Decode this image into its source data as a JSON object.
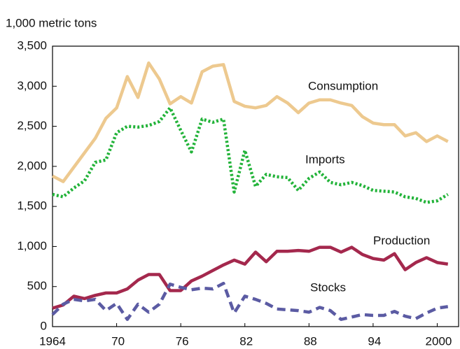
{
  "chart_data": {
    "type": "line",
    "y_label": "1,000 metric tons",
    "x": [
      1964,
      1965,
      1966,
      1967,
      1968,
      1969,
      1970,
      1971,
      1972,
      1973,
      1974,
      1975,
      1976,
      1977,
      1978,
      1979,
      1980,
      1981,
      1982,
      1983,
      1984,
      1985,
      1986,
      1987,
      1988,
      1989,
      1990,
      1991,
      1992,
      1993,
      1994,
      1995,
      1996,
      1997,
      1998,
      1999,
      2000,
      2001
    ],
    "xlim": [
      1964,
      2002
    ],
    "xticks": [
      {
        "value": 1964,
        "label": "1964"
      },
      {
        "value": 1970,
        "label": "70"
      },
      {
        "value": 1976,
        "label": "76"
      },
      {
        "value": 1982,
        "label": "82"
      },
      {
        "value": 1988,
        "label": "88"
      },
      {
        "value": 1994,
        "label": "94"
      },
      {
        "value": 2000,
        "label": "2000"
      }
    ],
    "ylim": [
      0,
      3500
    ],
    "yticks": [
      0,
      {
        "value": 500,
        "label": "500"
      },
      {
        "value": 1000,
        "label": "1,000"
      },
      {
        "value": 1500,
        "label": "1,500"
      },
      {
        "value": 2000,
        "label": "2,000"
      },
      {
        "value": 2500,
        "label": "2,500"
      },
      {
        "value": 3000,
        "label": "3,000"
      },
      {
        "value": 3500,
        "label": "3,500"
      }
    ],
    "series": [
      {
        "name": "Consumption",
        "color": "#edc98f",
        "dash": "solid",
        "values": [
          1880,
          1810,
          1990,
          2170,
          2350,
          2600,
          2730,
          3120,
          2860,
          3290,
          3090,
          2780,
          2870,
          2790,
          3180,
          3250,
          3270,
          2810,
          2750,
          2730,
          2760,
          2870,
          2790,
          2670,
          2790,
          2830,
          2830,
          2790,
          2760,
          2620,
          2540,
          2520,
          2520,
          2380,
          2420,
          2310,
          2380,
          2310
        ]
      },
      {
        "name": "Imports",
        "color": "#22b339",
        "dash": "dotted",
        "values": [
          1650,
          1620,
          1730,
          1820,
          2050,
          2080,
          2420,
          2500,
          2490,
          2510,
          2560,
          2730,
          2450,
          2180,
          2590,
          2550,
          2590,
          1680,
          2200,
          1750,
          1900,
          1870,
          1860,
          1700,
          1850,
          1930,
          1800,
          1770,
          1800,
          1760,
          1700,
          1690,
          1680,
          1620,
          1600,
          1550,
          1570,
          1650
        ]
      },
      {
        "name": "Production",
        "color": "#a4284d",
        "dash": "solid",
        "values": [
          230,
          270,
          380,
          350,
          390,
          420,
          420,
          470,
          580,
          650,
          650,
          450,
          450,
          570,
          630,
          700,
          770,
          830,
          780,
          930,
          810,
          940,
          940,
          950,
          940,
          990,
          990,
          930,
          990,
          900,
          850,
          830,
          910,
          710,
          800,
          860,
          800,
          780
        ]
      },
      {
        "name": "Stocks",
        "color": "#5b5ba3",
        "dash": "dashed",
        "values": [
          150,
          280,
          340,
          320,
          340,
          200,
          290,
          90,
          280,
          180,
          280,
          530,
          490,
          460,
          480,
          470,
          540,
          170,
          380,
          340,
          290,
          220,
          210,
          200,
          180,
          240,
          200,
          90,
          120,
          150,
          140,
          140,
          190,
          130,
          100,
          170,
          230,
          250
        ]
      }
    ]
  }
}
